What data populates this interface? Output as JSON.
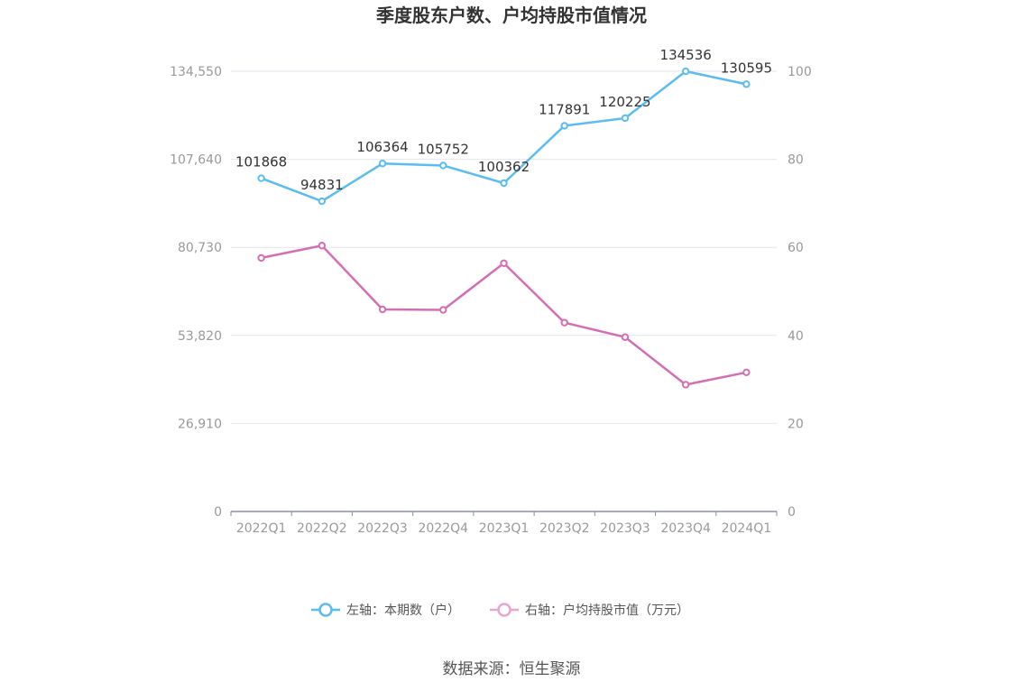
{
  "chart_data": {
    "type": "line",
    "title": "季度股东户数、户均持股市值情况",
    "categories": [
      "2022Q1",
      "2022Q2",
      "2022Q3",
      "2022Q4",
      "2023Q1",
      "2023Q2",
      "2023Q3",
      "2023Q4",
      "2024Q1"
    ],
    "left_axis": {
      "ylim": [
        0,
        134550
      ],
      "tick_labels": [
        "0",
        "26,910",
        "53,820",
        "80,730",
        "107,640",
        "134,550"
      ],
      "tick_values": [
        0,
        26910,
        53820,
        80730,
        107640,
        134550
      ]
    },
    "right_axis": {
      "ylim": [
        0,
        100
      ],
      "tick_labels": [
        "0",
        "20",
        "40",
        "60",
        "80",
        "100"
      ],
      "tick_values": [
        0,
        20,
        40,
        60,
        80,
        100
      ]
    },
    "series": [
      {
        "name": "左轴：本期数（户）",
        "axis": "left",
        "color": "#5bbcf0",
        "values": [
          101868,
          94831,
          106364,
          105752,
          100362,
          117891,
          120225,
          134536,
          130595
        ],
        "labels": [
          "101868",
          "94831",
          "106364",
          "105752",
          "100362",
          "117891",
          "120225",
          "134536",
          "130595"
        ]
      },
      {
        "name": "右轴：户均持股市值（万元）",
        "axis": "right",
        "color": "#d46eb4",
        "legend_color": "#eaa6cf",
        "values": [
          57.6,
          60.4,
          45.9,
          45.8,
          56.4,
          42.9,
          39.6,
          28.8,
          31.6
        ]
      }
    ],
    "grid": true,
    "legend_position": "bottom"
  },
  "source": "数据来源：恒生聚源"
}
